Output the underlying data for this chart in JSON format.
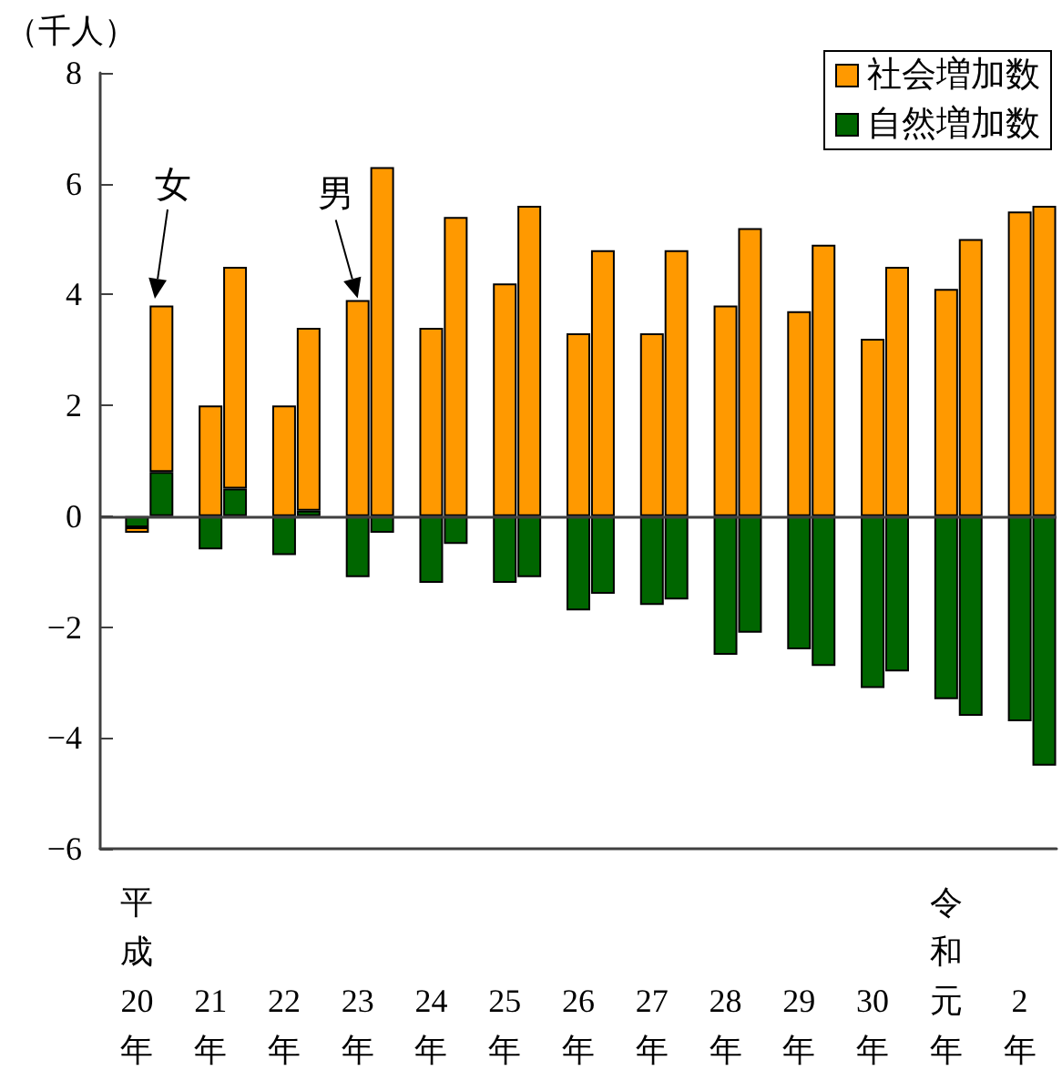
{
  "chart_data": {
    "type": "bar",
    "stacked": true,
    "ylabel": "（千人）",
    "categories": [
      null,
      "平成20年",
      null,
      null,
      "21年",
      null,
      null,
      "22年",
      null,
      null,
      "23年",
      null,
      null,
      "24年",
      null,
      null,
      "25年",
      null,
      null,
      "26年",
      null,
      null,
      "27年",
      null,
      null,
      "28年",
      null,
      null,
      "29年",
      null,
      null,
      "30年",
      null,
      null,
      "令和元年",
      null,
      null,
      "2年",
      null
    ],
    "series": [
      {
        "name": "自然増加数",
        "color": "#006600",
        "values": [
          null,
          -0.2,
          0.8,
          null,
          -0.6,
          0.5,
          null,
          -0.7,
          0.1,
          null,
          -1.1,
          -0.3,
          null,
          -1.2,
          -0.5,
          null,
          -1.2,
          -1.1,
          null,
          -1.7,
          -1.4,
          null,
          -1.6,
          -1.5,
          null,
          -2.5,
          -2.1,
          null,
          -2.4,
          -2.7,
          null,
          -3.1,
          -2.8,
          null,
          -3.3,
          -3.6,
          null,
          -3.7,
          -4.5
        ]
      },
      {
        "name": "社会増加数",
        "color": "#ff9900",
        "values": [
          null,
          -0.1,
          3.0,
          null,
          2.0,
          4.0,
          null,
          2.0,
          3.3,
          null,
          3.9,
          6.3,
          null,
          3.4,
          5.4,
          null,
          4.2,
          5.6,
          null,
          3.3,
          4.8,
          null,
          3.3,
          4.8,
          null,
          3.8,
          5.2,
          null,
          3.7,
          4.9,
          null,
          3.2,
          4.5,
          null,
          4.1,
          5.0,
          null,
          5.5,
          5.6
        ]
      }
    ],
    "ylim": [
      -6,
      8
    ],
    "yticks": [
      {
        "value": -6,
        "label": "−6"
      },
      {
        "value": -4,
        "label": "−4"
      },
      {
        "value": -2,
        "label": "−2"
      },
      0,
      2,
      4,
      6,
      8
    ],
    "ref_lines": [
      {
        "axis": "y",
        "value": 0,
        "color": "#404040"
      }
    ],
    "legend": "top right",
    "grid": false,
    "annotations": [
      "女",
      {
        "text": "男",
        "x": "23年",
        "y": 3.9
      }
    ]
  }
}
